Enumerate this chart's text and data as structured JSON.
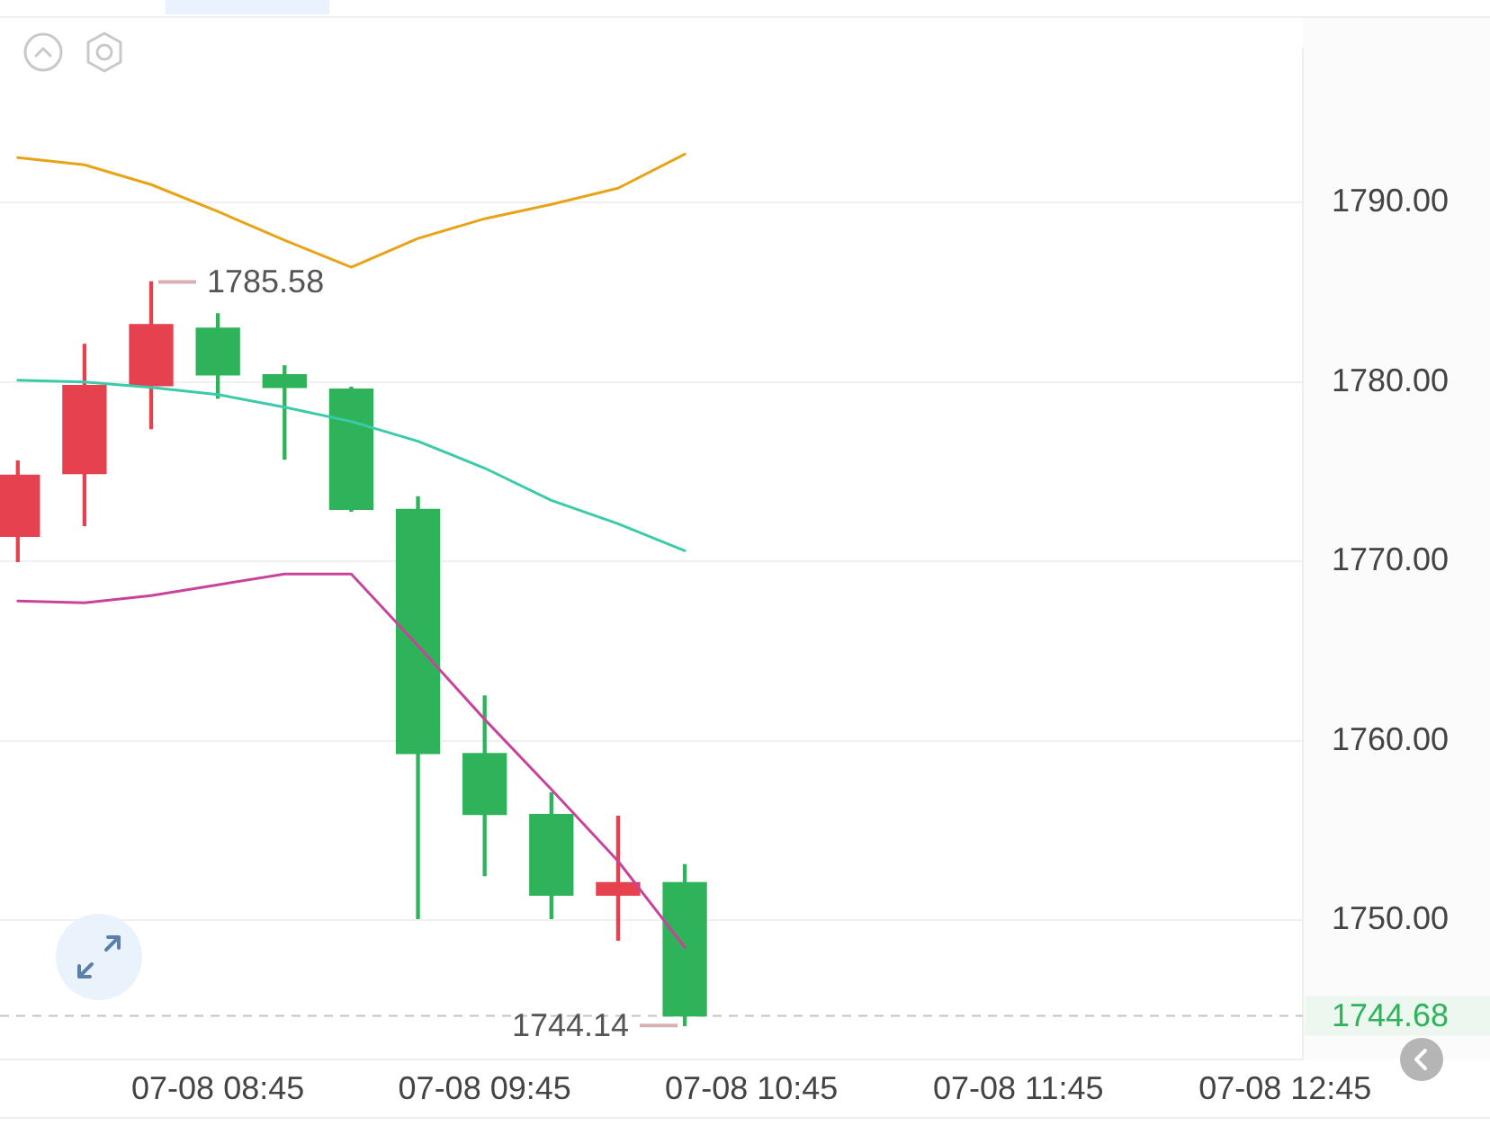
{
  "chart_data": {
    "type": "candlestick",
    "x": [
      "--07-08T08:00",
      "--07-08T08:15",
      "--07-08T08:30",
      "--07-08T08:45",
      "--07-08T09:00",
      "--07-08T09:15",
      "--07-08T09:30",
      "--07-08T09:45",
      "--07-08T10:00",
      "--07-08T10:15",
      "--07-08T10:30"
    ],
    "ohlc": [
      [
        1771.4,
        1775.6,
        1770.0,
        1774.8
      ],
      [
        1774.9,
        1782.1,
        1772.0,
        1779.8
      ],
      [
        1779.8,
        1785.58,
        1777.4,
        1783.2
      ],
      [
        1783.0,
        1783.8,
        1779.1,
        1780.4
      ],
      [
        1780.4,
        1780.9,
        1775.7,
        1779.7
      ],
      [
        1779.6,
        1779.7,
        1772.8,
        1772.9
      ],
      [
        1772.9,
        1773.6,
        1750.1,
        1759.3
      ],
      [
        1759.3,
        1762.5,
        1752.5,
        1755.9
      ],
      [
        1755.9,
        1757.1,
        1750.1,
        1751.4
      ],
      [
        1751.4,
        1755.8,
        1748.9,
        1752.1
      ],
      [
        1752.1,
        1753.1,
        1744.14,
        1744.68
      ]
    ],
    "colors": [
      "#e5414f",
      "#e5414f",
      "#e5414f",
      "#2fb35a",
      "#2fb35a",
      "#2fb35a",
      "#2fb35a",
      "#2fb35a",
      "#2fb35a",
      "#e5414f",
      "#2fb35a"
    ],
    "series": [
      {
        "type": "line",
        "color": "#e8a317",
        "values": [
          1792.5,
          1792.1,
          1791.0,
          1789.5,
          1787.9,
          1786.4,
          1788.0,
          1789.1,
          1789.9,
          1790.8,
          1792.7
        ]
      },
      {
        "type": "line",
        "color": "#3ccbaa",
        "values": [
          1780.1,
          1780.0,
          1779.7,
          1779.3,
          1778.6,
          1777.8,
          1776.7,
          1775.2,
          1773.4,
          1772.1,
          1770.6
        ]
      },
      {
        "type": "line",
        "color": "#c8449c",
        "values": [
          1767.8,
          1767.7,
          1768.1,
          1768.7,
          1769.3,
          1769.3,
          1765.3,
          1761.2,
          1757.3,
          1753.3,
          1748.5
        ]
      }
    ],
    "xlim": [
      "--07-08T07:56",
      "--07-08T12:49"
    ],
    "xticks": [
      {
        "value": "--07-08T08:45",
        "label": "07-08 08:45"
      },
      {
        "value": "--07-08T09:45",
        "label": "07-08 09:45"
      },
      {
        "value": "--07-08T10:45",
        "label": "07-08 10:45"
      },
      {
        "value": "--07-08T11:45",
        "label": "07-08 11:45"
      },
      {
        "value": "--07-08T12:45",
        "label": "07-08 12:45"
      }
    ],
    "ylim": [
      1742.25,
      1798.6
    ],
    "yticks": [
      {
        "value": 1750,
        "label": "1750.00"
      },
      {
        "value": 1760,
        "label": "1760.00"
      },
      {
        "value": 1770,
        "label": "1770.00"
      },
      {
        "value": 1780,
        "label": "1780.00"
      },
      {
        "value": 1790,
        "label": "1790.00"
      }
    ],
    "ref_lines": [
      {
        "axis": "y",
        "value": 1744.68,
        "label": "1744.68",
        "color": "#c4c4c4",
        "line_style": "dashed"
      }
    ],
    "annotations": [
      {
        "text": "1785.58",
        "x": "--07-08T08:30",
        "y": 1785.58
      },
      {
        "text": "1744.14",
        "x": "--07-08T10:30",
        "y": 1744.14
      }
    ],
    "grid": "y",
    "legend": false
  }
}
